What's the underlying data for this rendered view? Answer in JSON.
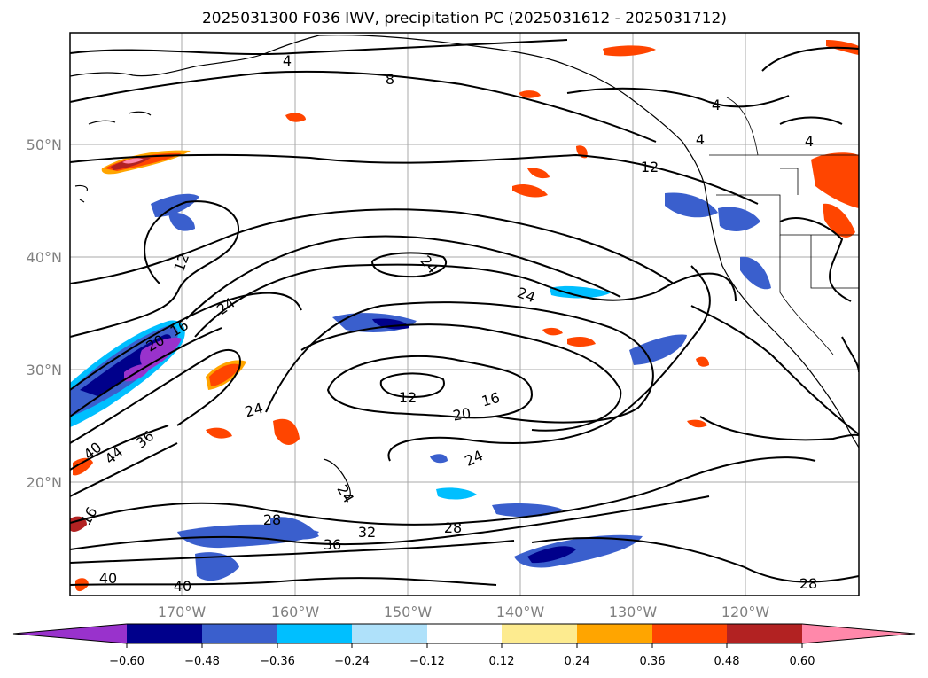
{
  "title": "2025031300 F036 IWV, precipitation PC (2025031612 - 2025031712)",
  "lat_labels": [
    "50°N",
    "40°N",
    "30°N",
    "20°N"
  ],
  "lon_labels": [
    "170°W",
    "160°W",
    "150°W",
    "140°W",
    "130°W",
    "120°W"
  ],
  "contour_labels": [
    "4",
    "8",
    "4",
    "4",
    "4",
    "12",
    "12",
    "24",
    "24",
    "24",
    "16",
    "20",
    "24",
    "24",
    "12",
    "16",
    "20",
    "24",
    "40",
    "44",
    "36",
    "28",
    "32",
    "28",
    "36",
    "40",
    "40",
    "28",
    "16"
  ],
  "colorbar": {
    "tick_labels": [
      "−0.60",
      "−0.48",
      "−0.36",
      "−0.24",
      "−0.12",
      "0.12",
      "0.24",
      "0.36",
      "0.48",
      "0.60"
    ],
    "colors": [
      "#9932cc",
      "#00008b",
      "#3a5fcd",
      "#00bfff",
      "#afe1fa",
      "#ffffff",
      "#fdeb8f",
      "#ffa500",
      "#ff4500",
      "#b22222",
      "#ff88aa"
    ]
  }
}
